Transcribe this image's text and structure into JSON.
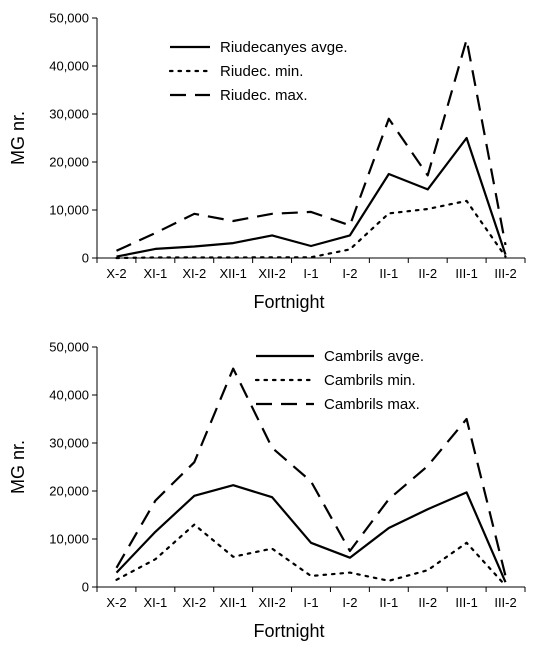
{
  "chart_data": [
    {
      "type": "line",
      "title": "",
      "xlabel": "Fortnight",
      "ylabel": "MG nr.",
      "ylim": [
        0,
        50000
      ],
      "yticks": [
        "0",
        "10,000",
        "20,000",
        "30,000",
        "40,000",
        "50,000"
      ],
      "categories": [
        "X-2",
        "XI-1",
        "XI-2",
        "XII-1",
        "XII-2",
        "I-1",
        "I-2",
        "II-1",
        "II-2",
        "III-1",
        "III-2"
      ],
      "legend_position": "top-left",
      "series": [
        {
          "name": "Riudecanyes avge.",
          "style": "solid",
          "values": [
            300,
            1900,
            2400,
            3100,
            4700,
            2500,
            4700,
            17500,
            14300,
            25000,
            700
          ]
        },
        {
          "name": "Riudec. min.",
          "style": "dotted",
          "values": [
            0,
            100,
            100,
            100,
            150,
            150,
            1800,
            9300,
            10200,
            11900,
            300
          ]
        },
        {
          "name": "Riudec. max.",
          "style": "dashed",
          "values": [
            1500,
            5200,
            9200,
            7700,
            9200,
            9600,
            6800,
            29000,
            17200,
            45500,
            2700
          ]
        }
      ]
    },
    {
      "type": "line",
      "title": "",
      "xlabel": "Fortnight",
      "ylabel": "MG nr.",
      "ylim": [
        0,
        50000
      ],
      "yticks": [
        "0",
        "10,000",
        "20,000",
        "30,000",
        "40,000",
        "50,000"
      ],
      "categories": [
        "X-2",
        "XI-1",
        "XI-2",
        "XII-1",
        "XII-2",
        "I-1",
        "I-2",
        "II-1",
        "II-2",
        "III-1",
        "III-2"
      ],
      "legend_position": "top-right",
      "series": [
        {
          "name": "Cambrils avge.",
          "style": "solid",
          "values": [
            3000,
            11500,
            19000,
            21200,
            18700,
            9200,
            6100,
            12300,
            16200,
            19700,
            1000
          ]
        },
        {
          "name": "Cambrils min.",
          "style": "dotted",
          "values": [
            1500,
            5800,
            13000,
            6300,
            8000,
            2300,
            3000,
            1300,
            3500,
            9200,
            300
          ]
        },
        {
          "name": "Cambrils max.",
          "style": "dashed",
          "values": [
            4000,
            18000,
            26000,
            45500,
            29000,
            22000,
            7500,
            18300,
            25200,
            35000,
            2300
          ]
        }
      ]
    }
  ]
}
